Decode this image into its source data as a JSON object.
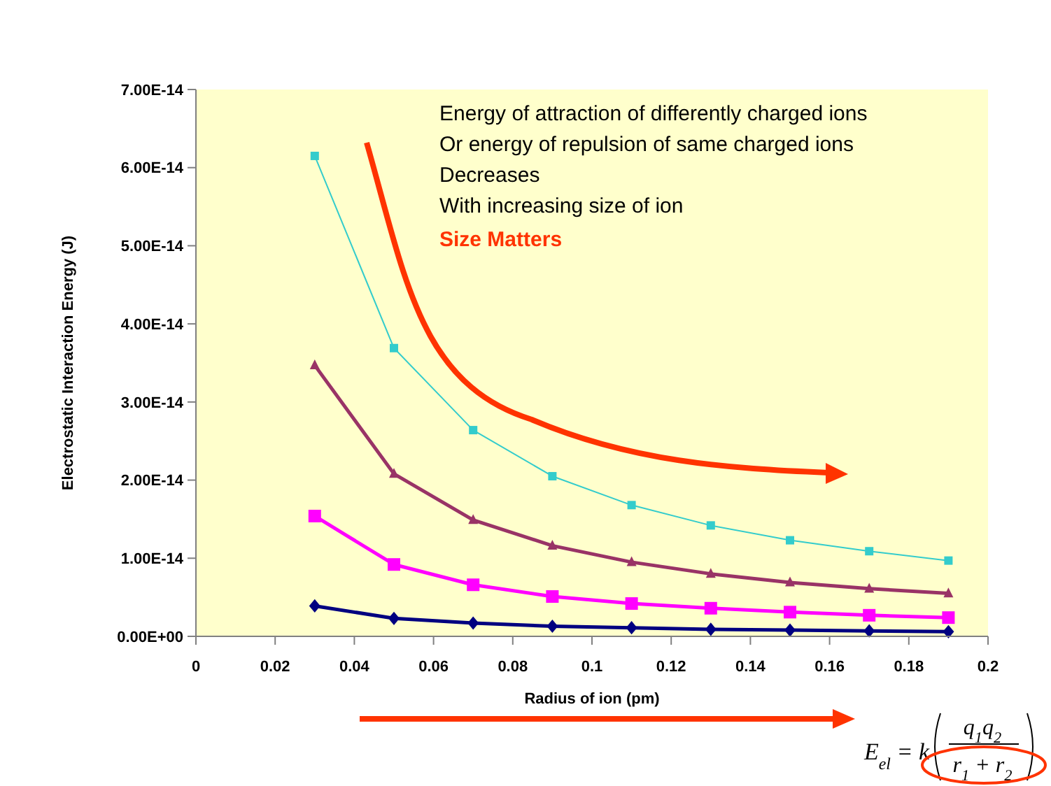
{
  "chart_data": {
    "type": "line",
    "xlabel": "Radius of ion (pm)",
    "ylabel": "Electrostatic Interaction Energy (J)",
    "x": [
      0.03,
      0.05,
      0.07,
      0.09,
      0.11,
      0.13,
      0.15,
      0.17,
      0.19
    ],
    "series": [
      {
        "color": "#33cccc",
        "marker": "square",
        "values": [
          6.15e-14,
          3.69e-14,
          2.64e-14,
          2.05e-14,
          1.68e-14,
          1.42e-14,
          1.23e-14,
          1.09e-14,
          9.7e-15
        ]
      },
      {
        "color": "#993366",
        "marker": "triangle",
        "values": [
          3.47e-14,
          2.08e-14,
          1.49e-14,
          1.16e-14,
          9.5e-15,
          8e-15,
          6.9e-15,
          6.1e-15,
          5.5e-15
        ]
      },
      {
        "color": "#ff00ff",
        "marker": "square",
        "values": [
          1.54e-14,
          9.2e-15,
          6.6e-15,
          5.1e-15,
          4.2e-15,
          3.6e-15,
          3.1e-15,
          2.7e-15,
          2.4e-15
        ]
      },
      {
        "color": "#000080",
        "marker": "diamond",
        "values": [
          3.9e-15,
          2.3e-15,
          1.7e-15,
          1.3e-15,
          1.1e-15,
          9e-16,
          8e-16,
          7e-16,
          6e-16
        ]
      }
    ],
    "xlim": [
      0,
      0.2
    ],
    "xticks": [
      0,
      0.02,
      0.04,
      0.06,
      0.08,
      0.1,
      0.12,
      0.14,
      0.16,
      0.18,
      0.2
    ],
    "ylim": [
      0,
      7e-14
    ],
    "yticks": [
      {
        "value": 0,
        "label": "0.00E+00"
      },
      {
        "value": 1e-14,
        "label": "1.00E-14"
      },
      {
        "value": 2e-14,
        "label": "2.00E-14"
      },
      {
        "value": 3e-14,
        "label": "3.00E-14"
      },
      {
        "value": 4e-14,
        "label": "4.00E-14"
      },
      {
        "value": 5e-14,
        "label": "5.00E-14"
      },
      {
        "value": 6e-14,
        "label": "6.00E-14"
      },
      {
        "value": 7e-14,
        "label": "7.00E-14"
      }
    ],
    "grid": false,
    "line_style": "solid",
    "annotations": [
      "Energy of attraction of differently charged ions",
      "Or energy of repulsion of same charged ions",
      "Decreases",
      "With increasing size of ion",
      "Size Matters",
      "E$_{el}$ = k",
      "q$_{1}$q$_{2}$",
      "r$_{1}$ + r$_{2}$"
    ]
  }
}
